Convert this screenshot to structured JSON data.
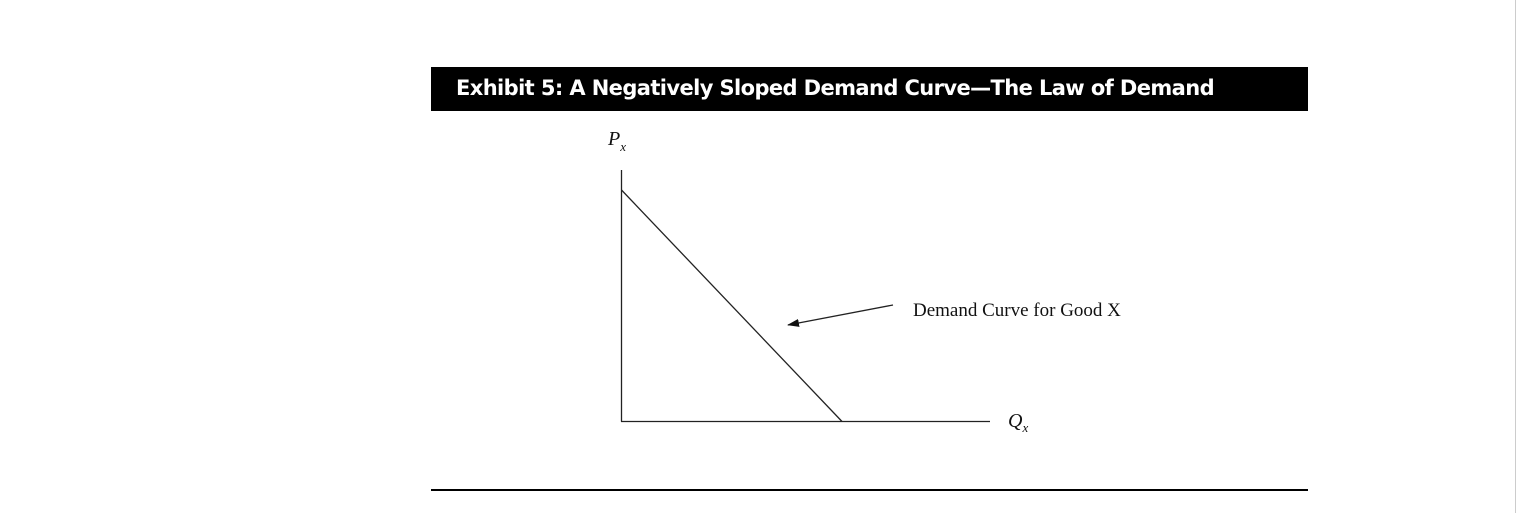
{
  "header": {
    "title": "Exhibit 5: A Negatively Sloped Demand Curve—The Law of Demand"
  },
  "diagram": {
    "y_axis": {
      "main": "P",
      "sub": "x"
    },
    "x_axis": {
      "main": "Q",
      "sub": "x"
    },
    "annotation": "Demand Curve for Good X"
  }
}
